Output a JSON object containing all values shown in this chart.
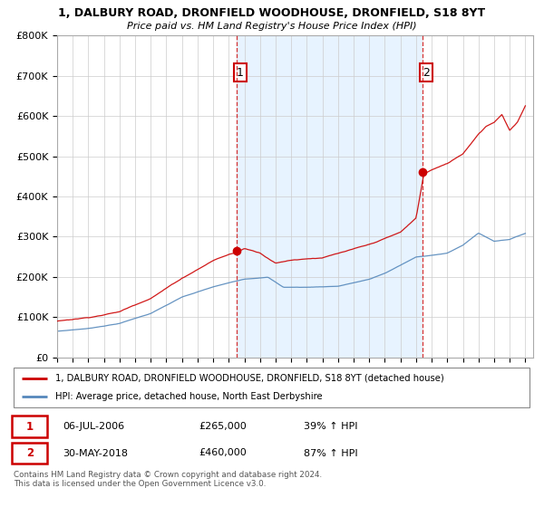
{
  "title": "1, DALBURY ROAD, DRONFIELD WOODHOUSE, DRONFIELD, S18 8YT",
  "subtitle": "Price paid vs. HM Land Registry's House Price Index (HPI)",
  "ylabel_ticks": [
    "£0",
    "£100K",
    "£200K",
    "£300K",
    "£400K",
    "£500K",
    "£600K",
    "£700K",
    "£800K"
  ],
  "ylim": [
    0,
    800000
  ],
  "xlim_start": 1995.0,
  "xlim_end": 2025.5,
  "sale1_date": 2006.5,
  "sale1_price": 265000,
  "sale1_label": "1",
  "sale2_date": 2018.42,
  "sale2_price": 460000,
  "sale2_label": "2",
  "red_line_color": "#cc0000",
  "blue_line_color": "#5588bb",
  "shading_color": "#ddeeff",
  "annotation_box_color": "#cc0000",
  "legend_entry1": "1, DALBURY ROAD, DRONFIELD WOODHOUSE, DRONFIELD, S18 8YT (detached house)",
  "legend_entry2": "HPI: Average price, detached house, North East Derbyshire",
  "table_row1": [
    "1",
    "06-JUL-2006",
    "£265,000",
    "39% ↑ HPI"
  ],
  "table_row2": [
    "2",
    "30-MAY-2018",
    "£460,000",
    "87% ↑ HPI"
  ],
  "footer": "Contains HM Land Registry data © Crown copyright and database right 2024.\nThis data is licensed under the Open Government Licence v3.0.",
  "background_color": "#ffffff",
  "plot_bg_color": "#ffffff",
  "grid_color": "#cccccc"
}
